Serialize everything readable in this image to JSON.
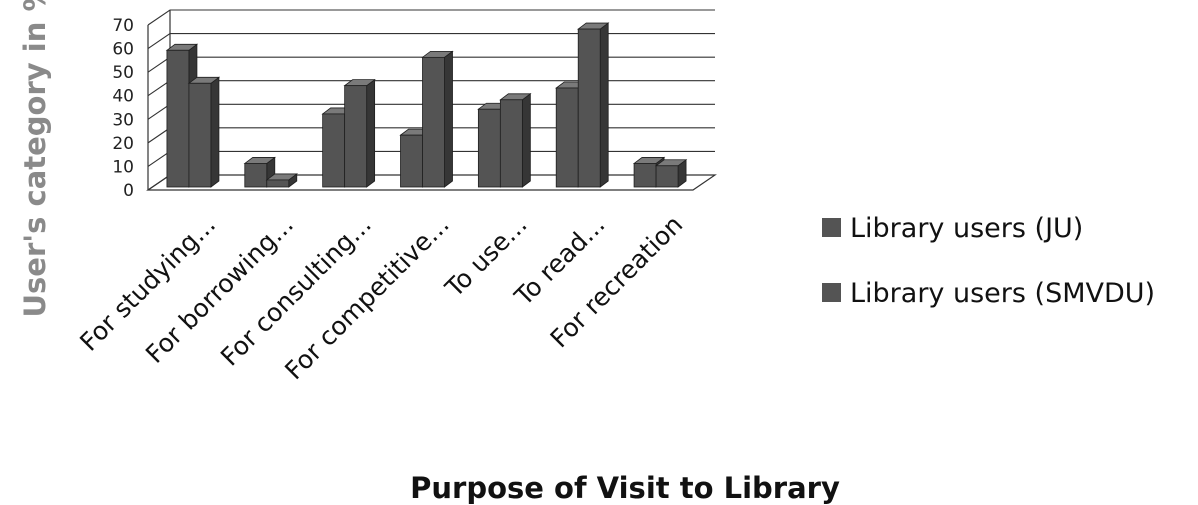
{
  "chart_data": {
    "type": "bar",
    "categories": [
      "For studying...",
      "For borrowing...",
      "For consulting...",
      "For competitive...",
      "To use...",
      "To read...",
      "For recreation"
    ],
    "series": [
      {
        "name": "Library users (JU)",
        "values": [
          58,
          10,
          31,
          22,
          33,
          42,
          10
        ]
      },
      {
        "name": "Library users (SMVDU)",
        "values": [
          44,
          3,
          43,
          55,
          37,
          67,
          9
        ]
      }
    ],
    "y_ticks": [
      "0",
      "10",
      "20",
      "30",
      "40",
      "50",
      "60",
      "70"
    ],
    "ylim": [
      0,
      70
    ],
    "ylabel": "User's category in %",
    "xlabel": "Purpose of Visit to Library",
    "legend_position": "right",
    "grid": true,
    "style": "3d-column",
    "colors": {
      "bar_front": "#545454",
      "bar_side": "#363636",
      "bar_top": "#7a7a7a",
      "grid": "#333333"
    }
  }
}
